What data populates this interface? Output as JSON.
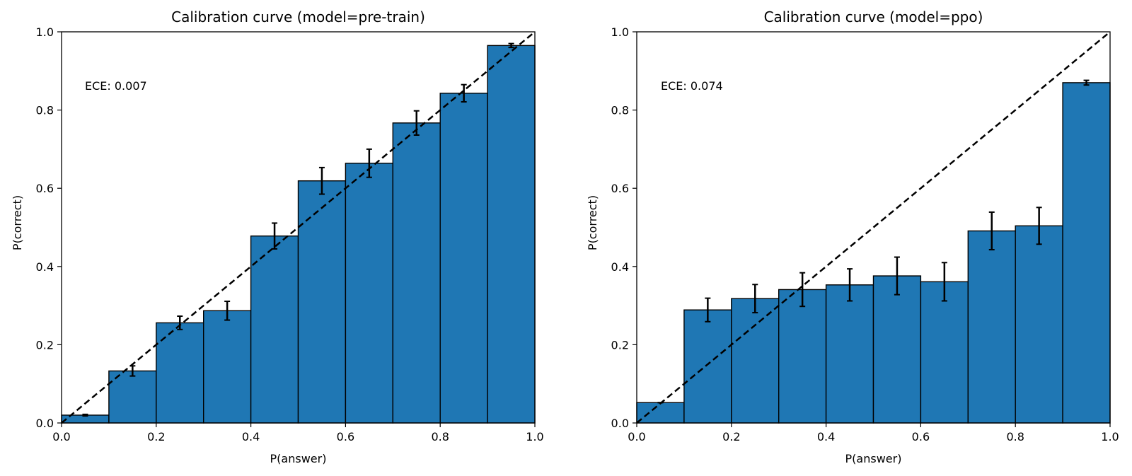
{
  "colors": {
    "bar": "#1f77b4",
    "edge": "#000000",
    "error": "#000000",
    "diagonal": "#000000"
  },
  "chart_data": [
    {
      "type": "bar",
      "title": "Calibration curve (model=pre-train)",
      "xlabel": "P(answer)",
      "ylabel": "P(correct)",
      "xlim": [
        0,
        1
      ],
      "ylim": [
        0,
        1
      ],
      "xticks": [
        "0.0",
        "0.2",
        "0.4",
        "0.6",
        "0.8",
        "1.0"
      ],
      "yticks": [
        "0.0",
        "0.2",
        "0.4",
        "0.6",
        "0.8",
        "1.0"
      ],
      "annotation": "ECE: 0.007",
      "bin_width": 0.1,
      "bins": [
        0.05,
        0.15,
        0.25,
        0.35,
        0.45,
        0.55,
        0.65,
        0.75,
        0.85,
        0.95
      ],
      "values": [
        0.02,
        0.133,
        0.256,
        0.287,
        0.478,
        0.619,
        0.664,
        0.767,
        0.843,
        0.965
      ],
      "errors": [
        0.002,
        0.013,
        0.017,
        0.024,
        0.033,
        0.034,
        0.036,
        0.031,
        0.022,
        0.005
      ],
      "reference_line": "y = x (dashed)"
    },
    {
      "type": "bar",
      "title": "Calibration curve (model=ppo)",
      "xlabel": "P(answer)",
      "ylabel": "P(correct)",
      "xlim": [
        0,
        1
      ],
      "ylim": [
        0,
        1
      ],
      "xticks": [
        "0.0",
        "0.2",
        "0.4",
        "0.6",
        "0.8",
        "1.0"
      ],
      "yticks": [
        "0.0",
        "0.2",
        "0.4",
        "0.6",
        "0.8",
        "1.0"
      ],
      "annotation": "ECE: 0.074",
      "bin_width": 0.1,
      "bins": [
        0.05,
        0.15,
        0.25,
        0.35,
        0.45,
        0.55,
        0.65,
        0.75,
        0.85,
        0.95
      ],
      "values": [
        0.052,
        0.289,
        0.318,
        0.341,
        0.353,
        0.376,
        0.361,
        0.491,
        0.504,
        0.87
      ],
      "errors": [
        0.0,
        0.03,
        0.036,
        0.043,
        0.041,
        0.048,
        0.049,
        0.048,
        0.047,
        0.006
      ],
      "reference_line": "y = x (dashed)"
    }
  ]
}
